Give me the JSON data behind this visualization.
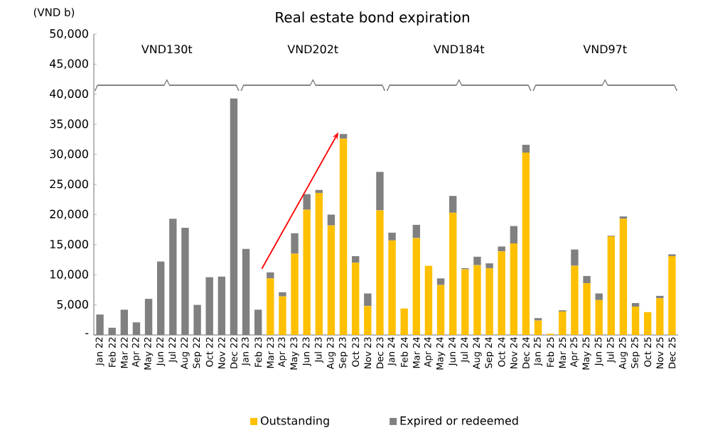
{
  "chart_data": {
    "type": "bar",
    "title": "Real estate bond expiration",
    "ylabel": "(VND b)",
    "stacked": true,
    "legend": "bottom",
    "categories": [
      "Jan 22",
      "Feb 22",
      "Mar 22",
      "Apr 22",
      "May 22",
      "Jun 22",
      "Jul 22",
      "Aug 22",
      "Sep 22",
      "Oct 22",
      "Nov 22",
      "Dec 22",
      "Jan 23",
      "Feb 23",
      "Mar 23",
      "Apr 23",
      "May 23",
      "Jun 23",
      "Jul 23",
      "Aug 23",
      "Sep 23",
      "Oct 23",
      "Nov 23",
      "Dec 23",
      "Jan 24",
      "Feb 24",
      "Mar 24",
      "Apr 24",
      "May 24",
      "Jun 24",
      "Jul 24",
      "Aug 24",
      "Sep 24",
      "Oct 24",
      "Nov 24",
      "Dec 24",
      "Jan 25",
      "Feb 25",
      "Mar 25",
      "Apr 25",
      "May 25",
      "Jun 25",
      "Jul 25",
      "Aug 25",
      "Sep 25",
      "Oct 25",
      "Nov 25",
      "Dec 25"
    ],
    "series": [
      {
        "name": "Outstanding",
        "color": "#ffc000",
        "values": [
          0,
          0,
          0,
          0,
          0,
          0,
          0,
          0,
          0,
          0,
          0,
          0,
          0,
          0,
          9400,
          6400,
          13500,
          20800,
          23600,
          18200,
          32600,
          12000,
          4800,
          20700,
          15700,
          4400,
          16100,
          11500,
          8300,
          20300,
          10900,
          11600,
          11100,
          13900,
          15200,
          30300,
          2400,
          200,
          3900,
          11500,
          8600,
          5800,
          16400,
          19300,
          4700,
          3800,
          6100,
          13100
        ]
      },
      {
        "name": "Expired or redeemed",
        "color": "#808080",
        "values": [
          3400,
          1200,
          4200,
          2100,
          6000,
          12200,
          19300,
          17800,
          5000,
          9600,
          9700,
          39300,
          14300,
          4200,
          1000,
          700,
          3400,
          2600,
          500,
          1800,
          800,
          1100,
          2100,
          6400,
          1300,
          0,
          2200,
          0,
          1100,
          2800,
          200,
          1400,
          800,
          800,
          2900,
          1300,
          400,
          0,
          200,
          2700,
          1200,
          1100,
          100,
          400,
          600,
          0,
          400,
          300
        ]
      }
    ],
    "ylim": [
      0,
      50000
    ],
    "yticks": [
      {
        "value": 0,
        "label": "-"
      },
      {
        "value": 5000,
        "label": "5,000"
      },
      {
        "value": 10000,
        "label": "10,000"
      },
      {
        "value": 15000,
        "label": "15,000"
      },
      {
        "value": 20000,
        "label": "20,000"
      },
      {
        "value": 25000,
        "label": "25,000"
      },
      {
        "value": 30000,
        "label": "30,000"
      },
      {
        "value": 35000,
        "label": "35,000"
      },
      {
        "value": 40000,
        "label": "40,000"
      },
      {
        "value": 45000,
        "label": "45,000"
      },
      {
        "value": 50000,
        "label": "50,000"
      }
    ],
    "annotations": [
      "VND130t",
      "VND202t",
      "VND184t",
      "VND97t"
    ]
  }
}
